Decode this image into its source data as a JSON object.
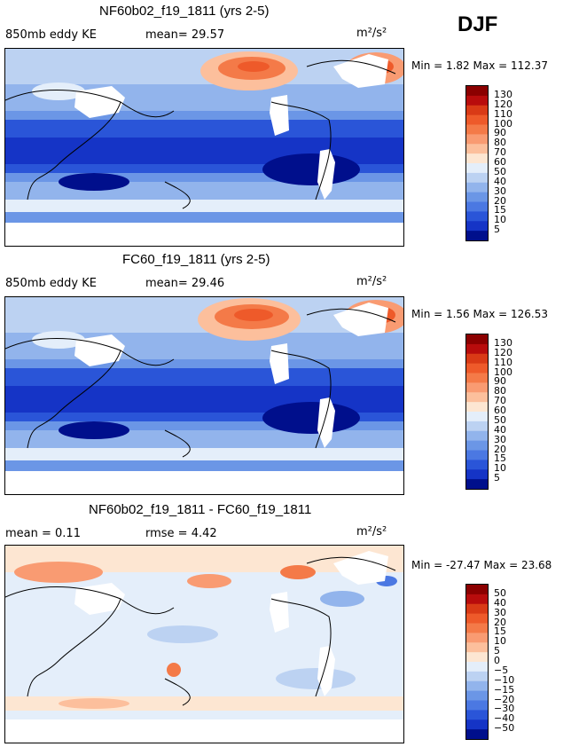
{
  "season": "DJF",
  "panels": [
    {
      "title": "NF60b02_f19_1811 (yrs 2-5)",
      "left_label": "850mb eddy KE",
      "center_label": "mean=  29.57",
      "units": "m²/s²",
      "stats": "Min =    1.82  Max = 112.37",
      "colorbar_labels": [
        "130",
        "120",
        "110",
        "100",
        "90",
        "80",
        "70",
        "60",
        "50",
        "40",
        "30",
        "20",
        "15",
        "10",
        "5"
      ],
      "colors": [
        "#8b0000",
        "#b80c0c",
        "#d93a16",
        "#ee5a2a",
        "#f47a48",
        "#f99b72",
        "#fcbf9c",
        "#fde6d2",
        "#e4eefa",
        "#bcd2f2",
        "#92b4ec",
        "#6b96e6",
        "#4b78e2",
        "#2a55d8",
        "#1534c6",
        "#000f8c"
      ]
    },
    {
      "title": "FC60_f19_1811 (yrs 2-5)",
      "left_label": "850mb eddy KE",
      "center_label": "mean=  29.46",
      "units": "m²/s²",
      "stats": "Min =    1.56  Max = 126.53",
      "colorbar_labels": [
        "130",
        "120",
        "110",
        "100",
        "90",
        "80",
        "70",
        "60",
        "50",
        "40",
        "30",
        "20",
        "15",
        "10",
        "5"
      ],
      "colors": [
        "#8b0000",
        "#b80c0c",
        "#d93a16",
        "#ee5a2a",
        "#f47a48",
        "#f99b72",
        "#fcbf9c",
        "#fde6d2",
        "#e4eefa",
        "#bcd2f2",
        "#92b4ec",
        "#6b96e6",
        "#4b78e2",
        "#2a55d8",
        "#1534c6",
        "#000f8c"
      ]
    },
    {
      "title": "NF60b02_f19_1811 - FC60_f19_1811",
      "left_label": "mean =    0.11",
      "center_label": "rmse =    4.42",
      "units": "m²/s²",
      "stats": "Min = -27.47  Max =  23.68",
      "colorbar_labels": [
        "50",
        "40",
        "30",
        "20",
        "15",
        "10",
        "5",
        "0",
        "−5",
        "−10",
        "−15",
        "−20",
        "−30",
        "−40",
        "−50"
      ],
      "colors": [
        "#8b0000",
        "#b80c0c",
        "#d93a16",
        "#ee5a2a",
        "#f47a48",
        "#f99b72",
        "#fcbf9c",
        "#fde6d2",
        "#e4eefa",
        "#bcd2f2",
        "#92b4ec",
        "#6b96e6",
        "#4b78e2",
        "#2a55d8",
        "#1534c6",
        "#000f8c"
      ]
    }
  ],
  "chart_data": [
    {
      "type": "heatmap",
      "title": "NF60b02_f19_1811 (yrs 2-5)",
      "variable": "850mb eddy KE",
      "units": "m2/s2",
      "season": "DJF",
      "mean": 29.57,
      "min": 1.82,
      "max": 112.37,
      "levels": [
        5,
        10,
        15,
        20,
        30,
        40,
        50,
        60,
        70,
        80,
        90,
        100,
        110,
        120,
        130
      ]
    },
    {
      "type": "heatmap",
      "title": "FC60_f19_1811 (yrs 2-5)",
      "variable": "850mb eddy KE",
      "units": "m2/s2",
      "season": "DJF",
      "mean": 29.46,
      "min": 1.56,
      "max": 126.53,
      "levels": [
        5,
        10,
        15,
        20,
        30,
        40,
        50,
        60,
        70,
        80,
        90,
        100,
        110,
        120,
        130
      ]
    },
    {
      "type": "heatmap",
      "title": "NF60b02_f19_1811 - FC60_f19_1811",
      "units": "m2/s2",
      "season": "DJF",
      "mean": 0.11,
      "rmse": 4.42,
      "min": -27.47,
      "max": 23.68,
      "levels": [
        -50,
        -40,
        -30,
        -20,
        -15,
        -10,
        -5,
        0,
        5,
        10,
        15,
        20,
        30,
        40,
        50
      ]
    }
  ]
}
